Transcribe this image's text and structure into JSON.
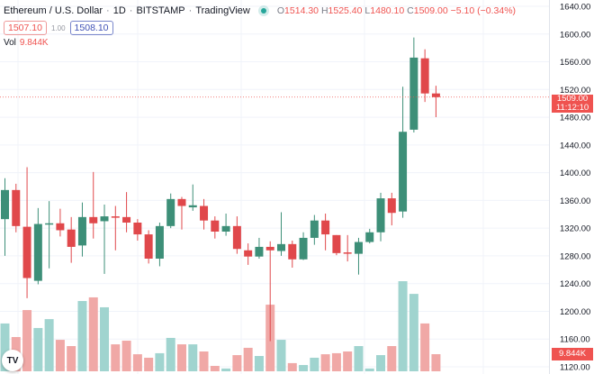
{
  "header": {
    "symbol": "Ethereum / U.S. Dollar",
    "interval": "1D",
    "exchange": "BITSTAMP",
    "source": "TradingView",
    "sep": "·",
    "o_label": "O",
    "o": "1514.30",
    "h_label": "H",
    "h": "1525.40",
    "l_label": "L",
    "l": "1480.10",
    "c_label": "C",
    "c": "1509.00",
    "change": "−5.10 (−0.34%)",
    "bid": "1507.10",
    "spread": "1.00",
    "ask": "1508.10",
    "vol_label": "Vol",
    "vol_value": "9.844K"
  },
  "price_tag": {
    "price": "1509.00",
    "countdown": "11:12:10"
  },
  "volume_tag": "9.844K",
  "logo": "TV",
  "colors": {
    "up": "#26a69a",
    "down": "#ef5350",
    "up_body": "#3d8f78",
    "down_body": "#e0484b",
    "up_vol": "#a0d4cf",
    "down_vol": "#f0a8a6"
  },
  "chart_data": {
    "type": "candlestick",
    "ylim": [
      1120,
      1640
    ],
    "y_ticks": [
      "1640.00",
      "1600.00",
      "1560.00",
      "1520.00",
      "1480.00",
      "1440.00",
      "1400.00",
      "1360.00",
      "1320.00",
      "1280.00",
      "1240.00",
      "1200.00",
      "1160.00",
      "1120.00"
    ],
    "grid": true,
    "ohlc": [
      [
        1333,
        1392,
        1280,
        1375
      ],
      [
        1375,
        1384,
        1314,
        1323
      ],
      [
        1322,
        1408,
        1219,
        1248
      ],
      [
        1244,
        1349,
        1239,
        1326
      ],
      [
        1326,
        1359,
        1262,
        1327
      ],
      [
        1327,
        1348,
        1308,
        1317
      ],
      [
        1318,
        1336,
        1270,
        1293
      ],
      [
        1295,
        1357,
        1279,
        1336
      ],
      [
        1336,
        1401,
        1305,
        1327
      ],
      [
        1330,
        1354,
        1254,
        1337
      ],
      [
        1337,
        1352,
        1288,
        1335
      ],
      [
        1336,
        1372,
        1314,
        1328
      ],
      [
        1328,
        1333,
        1302,
        1311
      ],
      [
        1311,
        1317,
        1269,
        1276
      ],
      [
        1276,
        1328,
        1265,
        1323
      ],
      [
        1323,
        1370,
        1320,
        1362
      ],
      [
        1362,
        1365,
        1318,
        1352
      ],
      [
        1350,
        1383,
        1345,
        1353
      ],
      [
        1352,
        1362,
        1318,
        1331
      ],
      [
        1331,
        1337,
        1305,
        1315
      ],
      [
        1315,
        1341,
        1309,
        1323
      ],
      [
        1323,
        1337,
        1283,
        1290
      ],
      [
        1288,
        1298,
        1267,
        1279
      ],
      [
        1279,
        1306,
        1276,
        1293
      ],
      [
        1293,
        1301,
        1157,
        1288
      ],
      [
        1287,
        1343,
        1280,
        1297
      ],
      [
        1297,
        1302,
        1263,
        1275
      ],
      [
        1275,
        1314,
        1274,
        1306
      ],
      [
        1306,
        1339,
        1296,
        1331
      ],
      [
        1331,
        1341,
        1288,
        1311
      ],
      [
        1310,
        1310,
        1281,
        1284
      ],
      [
        1285,
        1310,
        1272,
        1284
      ],
      [
        1283,
        1306,
        1253,
        1300
      ],
      [
        1300,
        1319,
        1298,
        1314
      ],
      [
        1314,
        1371,
        1301,
        1363
      ],
      [
        1363,
        1371,
        1324,
        1342
      ],
      [
        1344,
        1524,
        1335,
        1459
      ],
      [
        1462,
        1595,
        1458,
        1566
      ],
      [
        1565,
        1578,
        1502,
        1514.3
      ],
      [
        1514.3,
        1525.4,
        1480.1,
        1509
      ]
    ],
    "volume_k": [
      27.5,
      19.7,
      35.2,
      24.9,
      30.0,
      18.1,
      14.5,
      40.4,
      42.5,
      36.8,
      15.5,
      17.6,
      9.8,
      7.8,
      10.4,
      19.2,
      15.5,
      15.5,
      11.4,
      3.1,
      1.6,
      9.3,
      13.5,
      8.8,
      38.3,
      18.1,
      4.7,
      3.6,
      7.8,
      9.8,
      10.4,
      11.4,
      14.5,
      1.6,
      9.3,
      14.5,
      51.8,
      44.5,
      27.5,
      9.844
    ],
    "last_price": 1509.0
  }
}
